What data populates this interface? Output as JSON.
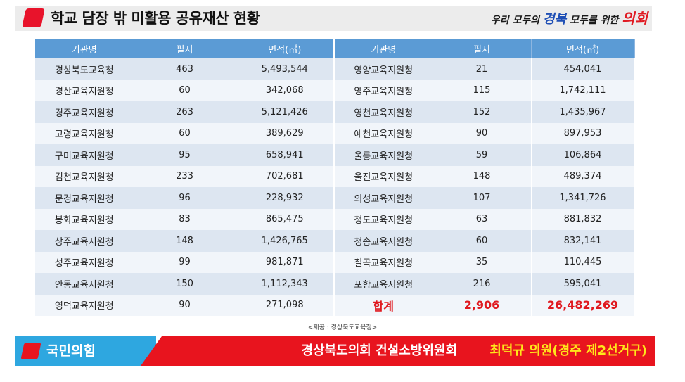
{
  "title": "학교 담장 밖 미활용 공유재산 현황",
  "slogan": {
    "part1": "우리 모두의 ",
    "part2": "경북",
    "part3": " 모두를 위한 ",
    "part4": "의회"
  },
  "table": {
    "headers": [
      "기관명",
      "필지",
      "면적(㎡)",
      "기관명",
      "필지",
      "면적(㎡)"
    ],
    "rows": [
      [
        "경상북도교육청",
        "463",
        "5,493,544",
        "영양교육지원청",
        "21",
        "454,041"
      ],
      [
        "경산교육지원청",
        "60",
        "342,068",
        "영주교육지원청",
        "115",
        "1,742,111"
      ],
      [
        "경주교육지원청",
        "263",
        "5,121,426",
        "영천교육지원청",
        "152",
        "1,435,967"
      ],
      [
        "고령교육지원청",
        "60",
        "389,629",
        "예천교육지원청",
        "90",
        "897,953"
      ],
      [
        "구미교육지원청",
        "95",
        "658,941",
        "울릉교육지원청",
        "59",
        "106,864"
      ],
      [
        "김천교육지원청",
        "233",
        "702,681",
        "울진교육지원청",
        "148",
        "489,374"
      ],
      [
        "문경교육지원청",
        "96",
        "228,932",
        "의성교육지원청",
        "107",
        "1,341,726"
      ],
      [
        "봉화교육지원청",
        "83",
        "865,475",
        "청도교육지원청",
        "63",
        "881,832"
      ],
      [
        "상주교육지원청",
        "148",
        "1,426,765",
        "청송교육지원청",
        "60",
        "832,141"
      ],
      [
        "성주교육지원청",
        "99",
        "981,871",
        "칠곡교육지원청",
        "35",
        "110,445"
      ],
      [
        "안동교육지원청",
        "150",
        "1,112,343",
        "포항교육지원청",
        "216",
        "595,041"
      ],
      [
        "영덕교육지원청",
        "90",
        "271,098",
        "합계",
        "2,906",
        "26,482,269"
      ]
    ]
  },
  "source": "<제공 : 경상북도교육청>",
  "footer": {
    "party": "국민의힘",
    "committee": "경상북도의회 건설소방위원회",
    "member": "최덕규 의원(경주 제2선거구)"
  },
  "colors": {
    "accent_red": "#e8132b",
    "header_blue": "#5b9bd5",
    "row_odd": "#dde6f1",
    "row_even": "#f1f5fa",
    "party_blue": "#2ea7e0",
    "member_yellow": "#ffe71a"
  }
}
